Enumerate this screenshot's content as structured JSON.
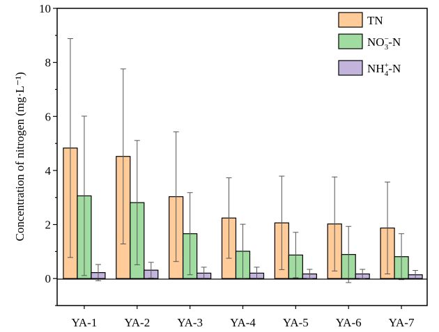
{
  "chart_data": {
    "type": "bar",
    "title": "",
    "xlabel": "",
    "ylabel": "Concentration of nitrogen (mg·L⁻¹)",
    "ylim": [
      -1,
      10
    ],
    "yticks": [
      0,
      2,
      4,
      6,
      8,
      10
    ],
    "grid": false,
    "legend_placement": "top-right",
    "error_bars": true,
    "categories": [
      "YA-1",
      "YA-2",
      "YA-3",
      "YA-4",
      "YA-5",
      "YA-6",
      "YA-7"
    ],
    "series": [
      {
        "name": "TN",
        "color": "#FFCC99",
        "values": [
          4.83,
          4.52,
          3.03,
          2.24,
          2.06,
          2.02,
          1.87
        ],
        "errors": [
          4.05,
          3.24,
          2.4,
          1.49,
          1.73,
          1.74,
          1.7
        ]
      },
      {
        "name": "NO3-N",
        "color": "#A0DCA0",
        "values": [
          3.06,
          2.81,
          1.66,
          1.01,
          0.87,
          0.89,
          0.81
        ],
        "errors": [
          2.95,
          2.3,
          1.52,
          1.0,
          0.84,
          1.04,
          0.85
        ]
      },
      {
        "name": "NH4-N",
        "color": "#C3B4DC",
        "values": [
          0.22,
          0.31,
          0.2,
          0.2,
          0.17,
          0.17,
          0.14
        ],
        "errors": [
          0.3,
          0.29,
          0.22,
          0.22,
          0.17,
          0.17,
          0.16
        ]
      }
    ]
  }
}
